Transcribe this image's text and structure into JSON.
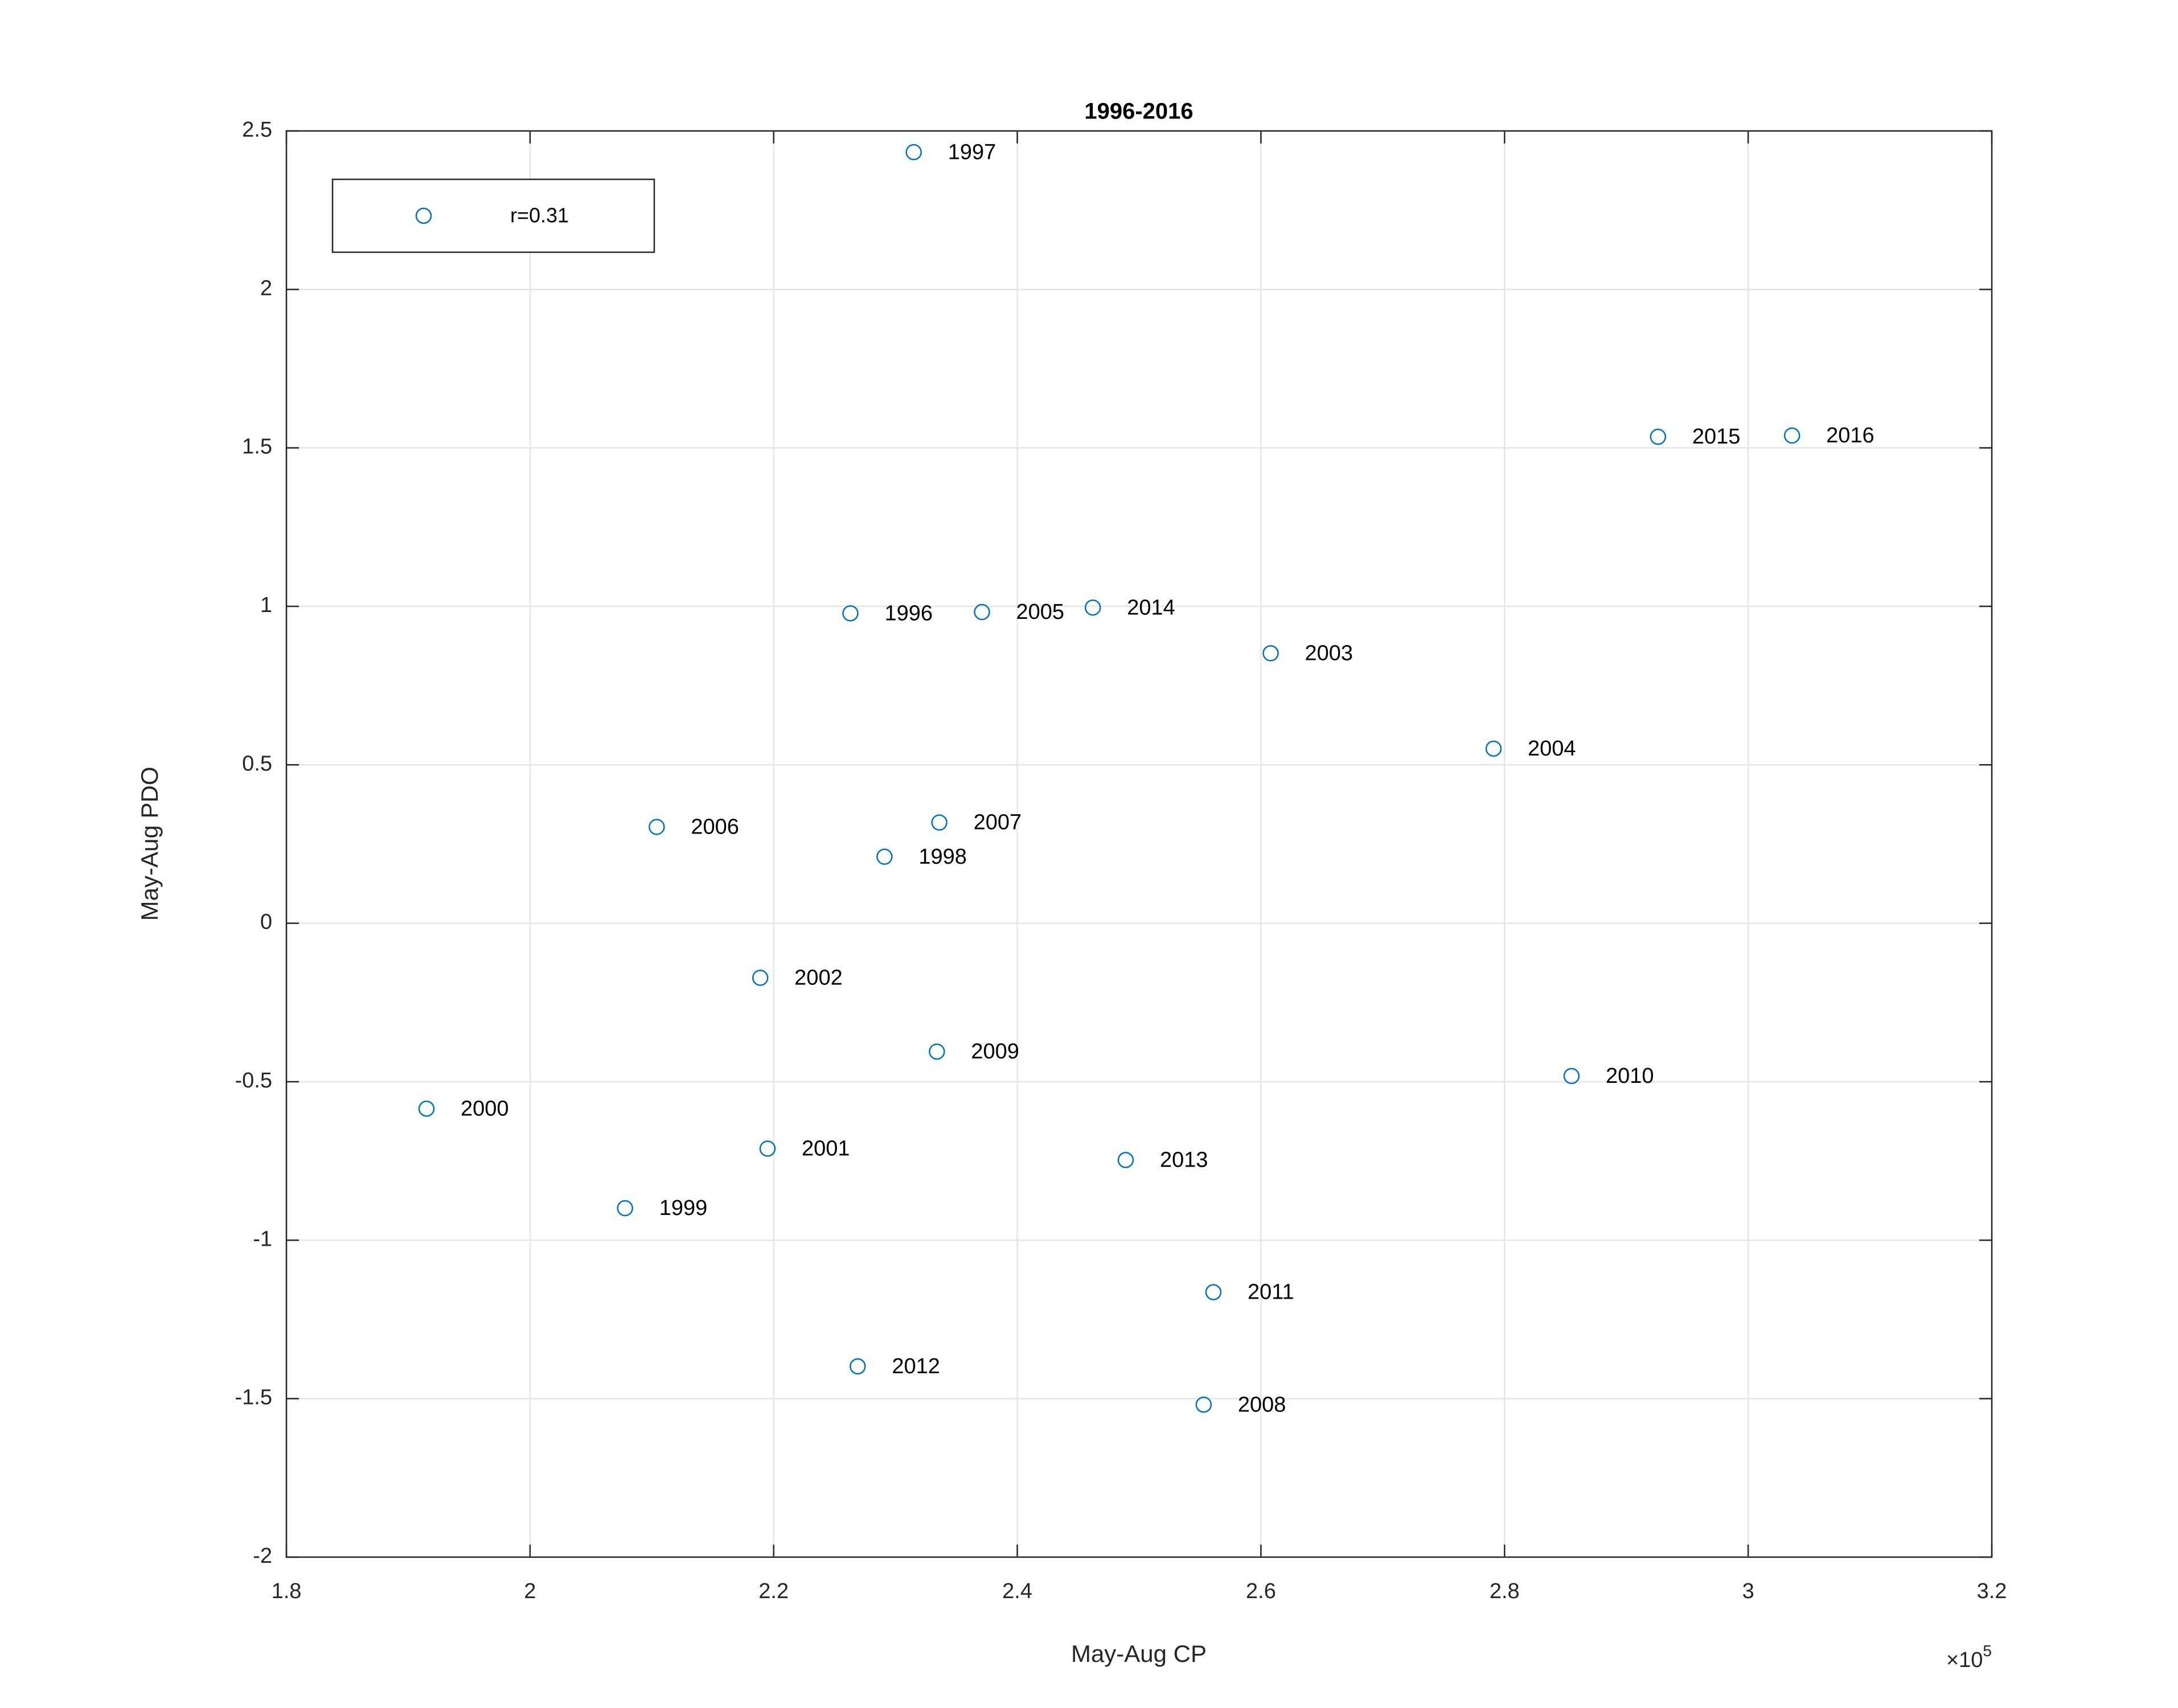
{
  "chart_data": {
    "type": "scatter",
    "title": "1996-2016",
    "xlabel": "May-Aug CP",
    "ylabel": "May-Aug PDO",
    "x_multiplier": {
      "base": "×10",
      "exponent": "5"
    },
    "series": [
      {
        "name": "r=0.31",
        "color": "#0072bd",
        "labels": [
          "1996",
          "1997",
          "1998",
          "1999",
          "2000",
          "2001",
          "2002",
          "2003",
          "2004",
          "2005",
          "2006",
          "2007",
          "2008",
          "2009",
          "2010",
          "2011",
          "2012",
          "2013",
          "2014",
          "2015",
          "2016"
        ],
        "x": [
          2.263,
          2.315,
          2.291,
          2.078,
          1.915,
          2.195,
          2.189,
          2.608,
          2.791,
          2.371,
          2.104,
          2.336,
          2.553,
          2.334,
          2.855,
          2.561,
          2.269,
          2.489,
          2.462,
          2.926,
          3.036
        ],
        "values": [
          0.978,
          2.433,
          0.21,
          -0.899,
          -0.585,
          -0.711,
          -0.172,
          0.852,
          0.551,
          0.982,
          0.304,
          0.318,
          -1.519,
          -0.405,
          -0.482,
          -1.164,
          -1.398,
          -0.747,
          0.996,
          1.535,
          1.539
        ]
      }
    ],
    "xlim": [
      1.8,
      3.2
    ],
    "xticks": [
      1.8,
      2,
      2.2,
      2.4,
      2.6,
      2.8,
      3,
      3.2
    ],
    "ylim": [
      -2,
      2.5
    ],
    "yticks": [
      -2,
      -1.5,
      -1,
      -0.5,
      0,
      0.5,
      1,
      1.5,
      2,
      2.5
    ],
    "grid": true,
    "legend": "upper left"
  }
}
